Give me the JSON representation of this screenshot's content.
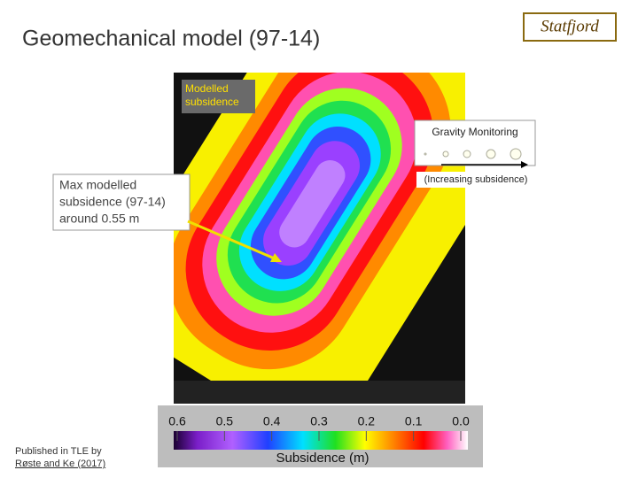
{
  "header": {
    "title": "Geomechanical model (97-14)",
    "logo": "Statfjord"
  },
  "map": {
    "label": "Modelled subsidence",
    "gravity_monitoring": {
      "title": "Gravity Monitoring",
      "note": "(Increasing subsidence)"
    },
    "callout": [
      "Max modelled",
      "subsidence (97-14)",
      "around 0.55 m"
    ]
  },
  "colorbar": {
    "ticks": [
      "0.6",
      "0.5",
      "0.4",
      "0.3",
      "0.2",
      "0.1",
      "0.0"
    ],
    "label": "Subsidence (m)"
  },
  "footer": {
    "line1": "Published in TLE by",
    "line2": "Røste and Ke (2017)"
  }
}
